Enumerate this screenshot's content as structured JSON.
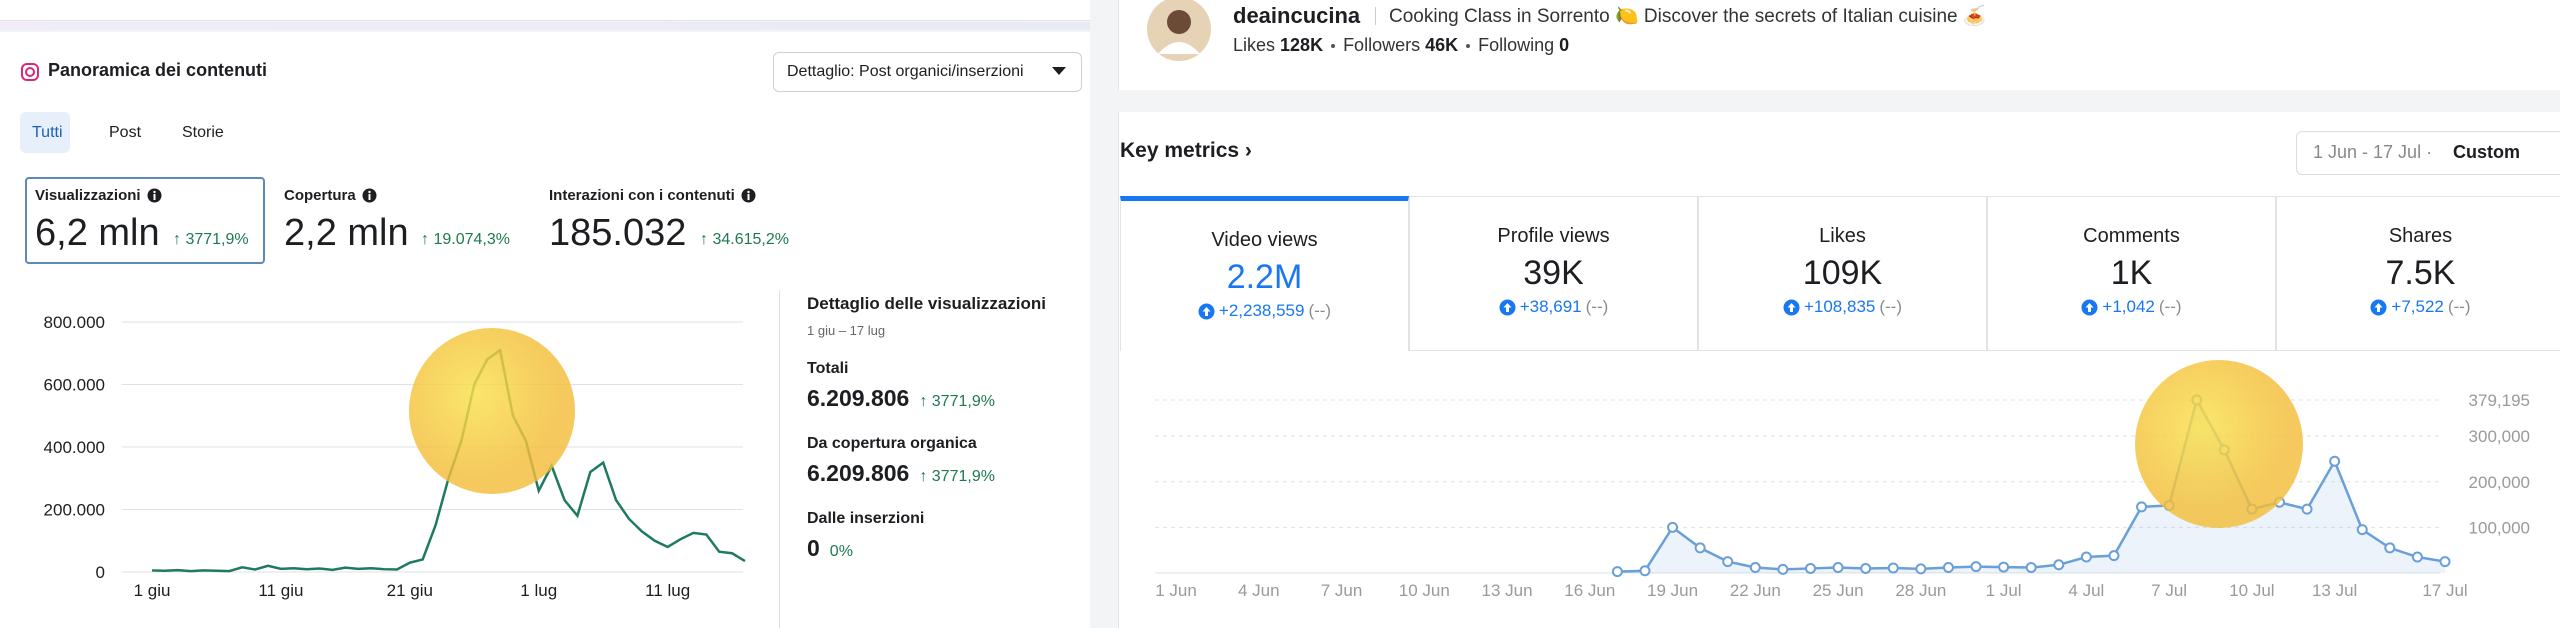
{
  "left": {
    "title": "Panoramica dei contenuti",
    "dropdown": "Dettaglio: Post organici/inserzioni",
    "tabs": [
      "Tutti",
      "Post",
      "Storie"
    ],
    "metrics": [
      {
        "label": "Visualizzazioni",
        "value": "6,2 mln",
        "change": "↑ 3771,9%"
      },
      {
        "label": "Copertura",
        "value": "2,2 mln",
        "change": "↑ 19.074,3%"
      },
      {
        "label": "Interazioni con i contenuti",
        "value": "185.032",
        "change": "↑ 34.615,2%"
      }
    ],
    "chart": {
      "type": "line",
      "color": "#1f7a63",
      "grid": true,
      "categories": [
        "1 giu",
        null,
        null,
        null,
        null,
        null,
        null,
        null,
        null,
        null,
        "11 giu",
        null,
        null,
        null,
        null,
        null,
        null,
        null,
        null,
        null,
        "21 giu",
        null,
        null,
        null,
        null,
        null,
        null,
        null,
        null,
        null,
        "1 lug",
        null,
        null,
        null,
        null,
        null,
        null,
        null,
        null,
        null,
        "11 lug",
        null,
        null,
        null,
        null,
        null,
        null
      ],
      "values": [
        5000,
        4000,
        6000,
        3000,
        5000,
        4000,
        3000,
        15000,
        8000,
        20000,
        10000,
        12000,
        9000,
        11000,
        7000,
        14000,
        10000,
        12000,
        9000,
        8000,
        30000,
        40000,
        150000,
        300000,
        420000,
        600000,
        680000,
        710000,
        500000,
        420000,
        260000,
        340000,
        230000,
        180000,
        320000,
        350000,
        230000,
        170000,
        130000,
        100000,
        80000,
        105000,
        125000,
        120000,
        65000,
        60000,
        35000
      ],
      "ylim": [
        0,
        800000
      ],
      "yticks": [
        0,
        {
          "value": 200000,
          "label": "200.000"
        },
        {
          "value": 400000,
          "label": "400.000"
        },
        {
          "value": 600000,
          "label": "600.000"
        },
        {
          "value": 800000,
          "label": "800.000"
        }
      ]
    },
    "detail": {
      "title": "Dettaglio delle visualizzazioni",
      "period": "1 giu – 17 lug",
      "rows": [
        {
          "label": "Totali",
          "value": "6.209.806",
          "change": "↑ 3771,9%"
        },
        {
          "label": "Da copertura organica",
          "value": "6.209.806",
          "change": "↑ 3771,9%"
        },
        {
          "label": "Dalle inserzioni",
          "value": "0",
          "change": "0%"
        }
      ]
    }
  },
  "right": {
    "name": "deaincucina",
    "bio": "Cooking Class in Sorrento 🍋 Discover the secrets of Italian cuisine 🍝",
    "stats": [
      {
        "label": "Likes",
        "value": "128K"
      },
      {
        "label": "Followers",
        "value": "46K"
      },
      {
        "label": "Following",
        "value": "0"
      }
    ],
    "section": "Key metrics ›",
    "date_range": "1 Jun - 17 Jul ·",
    "range_mode": "Custom",
    "metrics": [
      {
        "label": "Video views",
        "value": "2.2M",
        "change": "+2,238,559",
        "compare": "(--)"
      },
      {
        "label": "Profile views",
        "value": "39K",
        "change": "+38,691",
        "compare": "(--)"
      },
      {
        "label": "Likes",
        "value": "109K",
        "change": "+108,835",
        "compare": "(--)"
      },
      {
        "label": "Comments",
        "value": "1K",
        "change": "+1,042",
        "compare": "(--)"
      },
      {
        "label": "Shares",
        "value": "7.5K",
        "change": "+7,522",
        "compare": "(--)"
      }
    ],
    "chart": {
      "type": "line",
      "color": "#6a9fd8",
      "area": true,
      "markers": true,
      "grid": true,
      "categories": [
        "1 Jun",
        null,
        null,
        "4 Jun",
        null,
        null,
        "7 Jun",
        null,
        null,
        "10 Jun",
        null,
        null,
        "13 Jun",
        null,
        null,
        "16 Jun",
        null,
        null,
        "19 Jun",
        null,
        null,
        "22 Jun",
        null,
        null,
        "25 Jun",
        null,
        null,
        "28 Jun",
        null,
        null,
        "1 Jul",
        null,
        null,
        "4 Jul",
        null,
        null,
        "7 Jul",
        null,
        null,
        "10 Jul",
        null,
        null,
        "13 Jul",
        null,
        null,
        null,
        "17 Jul"
      ],
      "values": [
        null,
        null,
        null,
        null,
        null,
        null,
        null,
        null,
        null,
        null,
        null,
        null,
        null,
        null,
        null,
        null,
        3000,
        5000,
        100000,
        55000,
        25000,
        12000,
        8000,
        10000,
        12000,
        10000,
        11000,
        9000,
        12000,
        14000,
        13000,
        12000,
        18000,
        35000,
        38000,
        145000,
        148000,
        379195,
        270000,
        140000,
        155000,
        140000,
        245000,
        95000,
        55000,
        35000,
        25000
      ],
      "ylim": [
        0,
        379195
      ],
      "yticks": [
        {
          "value": 100000,
          "label": "100,000"
        },
        {
          "value": 200000,
          "label": "200,000"
        },
        {
          "value": 300000,
          "label": "300,000"
        },
        {
          "value": 379195,
          "label": "379,195"
        }
      ]
    }
  }
}
